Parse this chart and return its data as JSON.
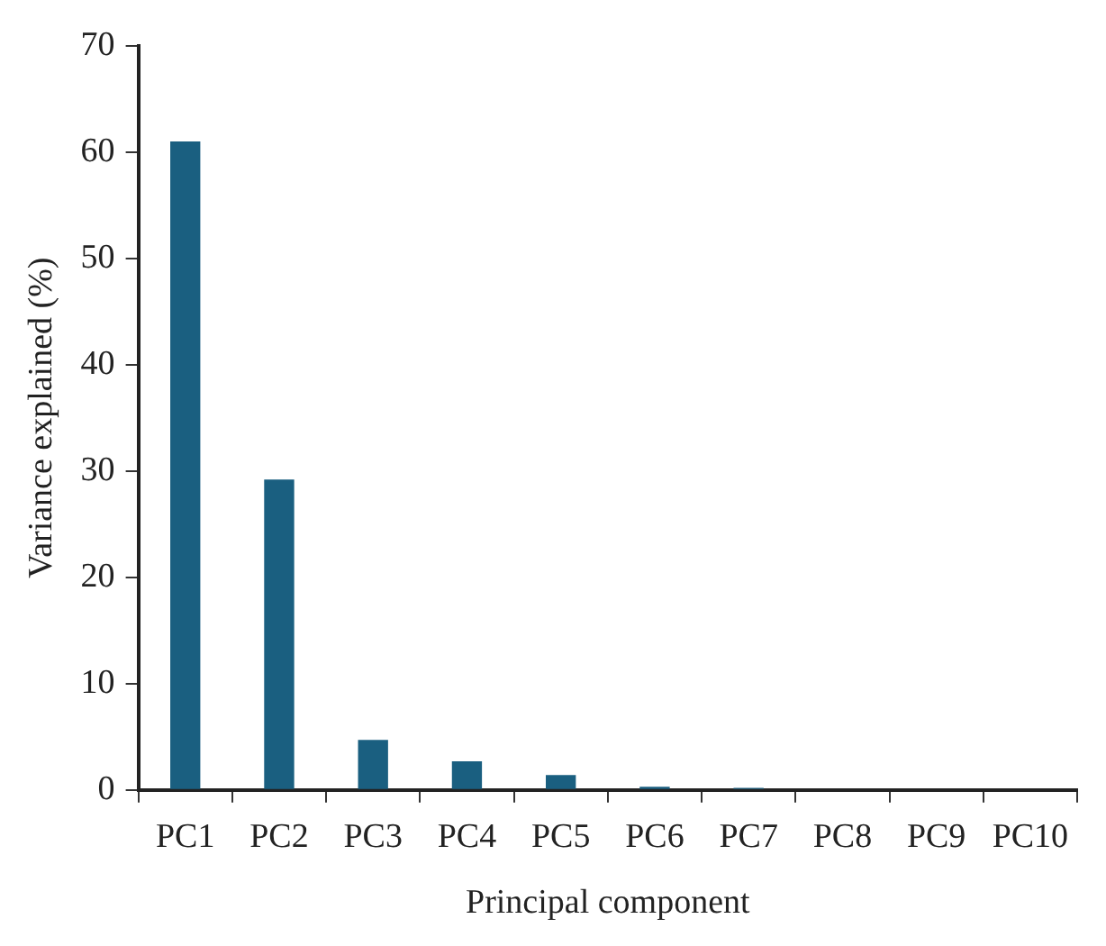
{
  "chart_data": {
    "type": "bar",
    "xlabel": "Principal component",
    "ylabel": "Variance explained (%)",
    "categories": [
      "PC1",
      "PC2",
      "PC3",
      "PC4",
      "PC5",
      "PC6",
      "PC7",
      "PC8",
      "PC9",
      "PC10"
    ],
    "values": [
      61,
      29.2,
      4.7,
      2.7,
      1.4,
      0.3,
      0.2,
      null,
      null,
      null
    ],
    "color": "#1a5f80",
    "ylim": [
      0,
      70
    ],
    "yticks": [
      0,
      10,
      20,
      30,
      40,
      50,
      60,
      70
    ],
    "grid": false,
    "legend": false
  }
}
